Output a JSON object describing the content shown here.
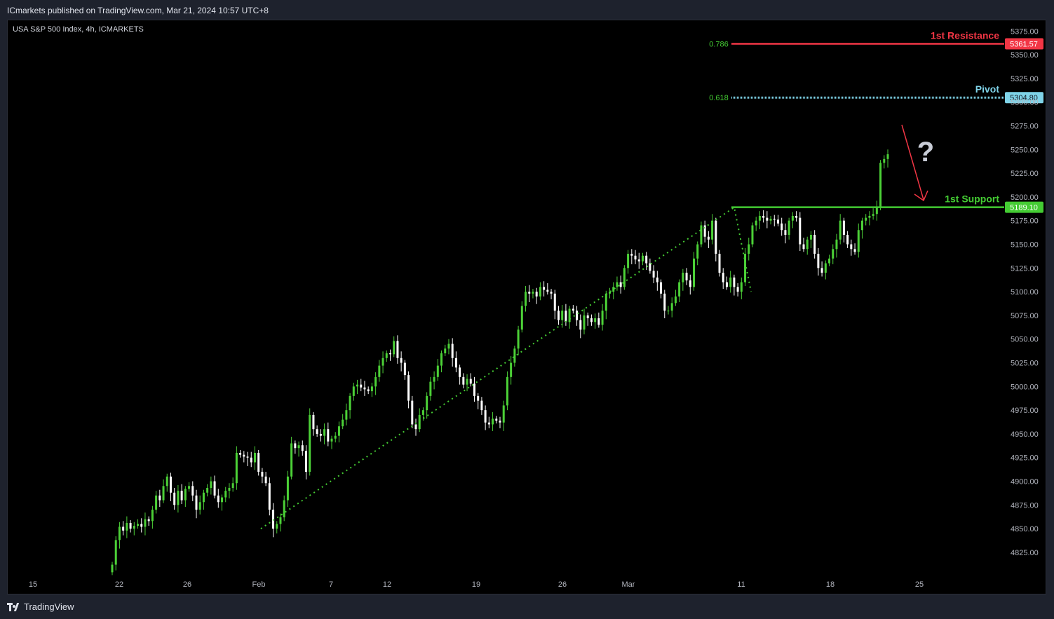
{
  "header": {
    "published": "ICmarkets published on TradingView.com, Mar 21, 2024 10:57 UTC+8",
    "symbol": "USA S&P 500 Index, 4h, ICMARKETS"
  },
  "footer": {
    "brand": "TradingView"
  },
  "colors": {
    "background": "#000000",
    "up": "#4cd137",
    "down": "#ffffff",
    "resistance": "#f23645",
    "pivot": "#7fd3e8",
    "support": "#44cc33",
    "arrow": "#f23645",
    "fib": "#44cc33"
  },
  "chart_data": {
    "type": "candlestick",
    "timeframe": "4h",
    "ylim": [
      4805,
      5390
    ],
    "y_ticks": [
      "5375.00",
      "5350.00",
      "5325.00",
      "5300.00",
      "5275.00",
      "5250.00",
      "5225.00",
      "5200.00",
      "5175.00",
      "5150.00",
      "5125.00",
      "5100.00",
      "5075.00",
      "5050.00",
      "5025.00",
      "5000.00",
      "4975.00",
      "4950.00",
      "4925.00",
      "4900.00",
      "4875.00",
      "4850.00",
      "4825.00"
    ],
    "x_ticks": [
      "15",
      "22",
      "26",
      "Feb",
      "7",
      "12",
      "19",
      "26",
      "Mar",
      "11",
      "18",
      "25"
    ],
    "levels": [
      {
        "name": "1st Resistance",
        "value": 5361.57,
        "label": "5361.57",
        "fib": "0.786",
        "color": "#f23645",
        "style": "solid"
      },
      {
        "name": "Pivot",
        "value": 5304.8,
        "label": "5304.80",
        "fib": "0.618",
        "color": "#7fd3e8",
        "style": "dotted"
      },
      {
        "name": "1st Support",
        "value": 5189.1,
        "label": "5189.10",
        "fib": "",
        "color": "#44cc33",
        "style": "solid"
      }
    ],
    "closes": [
      4812,
      4838,
      4852,
      4848,
      4856,
      4850,
      4853,
      4855,
      4852,
      4860,
      4858,
      4870,
      4885,
      4880,
      4895,
      4905,
      4888,
      4875,
      4890,
      4880,
      4892,
      4895,
      4885,
      4870,
      4878,
      4888,
      4893,
      4900,
      4885,
      4878,
      4883,
      4890,
      4893,
      4898,
      4930,
      4928,
      4926,
      4925,
      4920,
      4930,
      4910,
      4905,
      4898,
      4870,
      4850,
      4855,
      4862,
      4880,
      4905,
      4940,
      4935,
      4938,
      4932,
      4910,
      4970,
      4955,
      4950,
      4948,
      4955,
      4942,
      4945,
      4948,
      4958,
      4965,
      4975,
      4990,
      5000,
      5002,
      4999,
      4997,
      4995,
      5000,
      5010,
      5022,
      5030,
      5035,
      5034,
      5048,
      5030,
      5025,
      5012,
      4985,
      4960,
      4955,
      4970,
      4975,
      4990,
      5005,
      5010,
      5022,
      5035,
      5040,
      5045,
      5030,
      5020,
      5010,
      5002,
      5008,
      5003,
      4990,
      4985,
      4975,
      4962,
      4960,
      4966,
      4964,
      4962,
      4980,
      5010,
      5025,
      5040,
      5060,
      5085,
      5100,
      5098,
      5100,
      5095,
      5105,
      5102,
      5100,
      5098,
      5080,
      5070,
      5080,
      5068,
      5082,
      5080,
      5070,
      5060,
      5075,
      5072,
      5068,
      5072,
      5065,
      5080,
      5098,
      5100,
      5105,
      5110,
      5105,
      5125,
      5140,
      5138,
      5134,
      5132,
      5138,
      5130,
      5122,
      5115,
      5110,
      5098,
      5080,
      5080,
      5088,
      5095,
      5110,
      5120,
      5112,
      5105,
      5135,
      5150,
      5170,
      5158,
      5155,
      5175,
      5140,
      5120,
      5110,
      5105,
      5115,
      5105,
      5100,
      5110,
      5140,
      5150,
      5170,
      5175,
      5180,
      5178,
      5175,
      5177,
      5176,
      5172,
      5165,
      5160,
      5175,
      5180,
      5178,
      5150,
      5145,
      5155,
      5160,
      5140,
      5125,
      5120,
      5130,
      5135,
      5145,
      5155,
      5175,
      5160,
      5150,
      5145,
      5142,
      5165,
      5175,
      5178,
      5180,
      5182,
      5189,
      5236,
      5240,
      5245
    ]
  }
}
